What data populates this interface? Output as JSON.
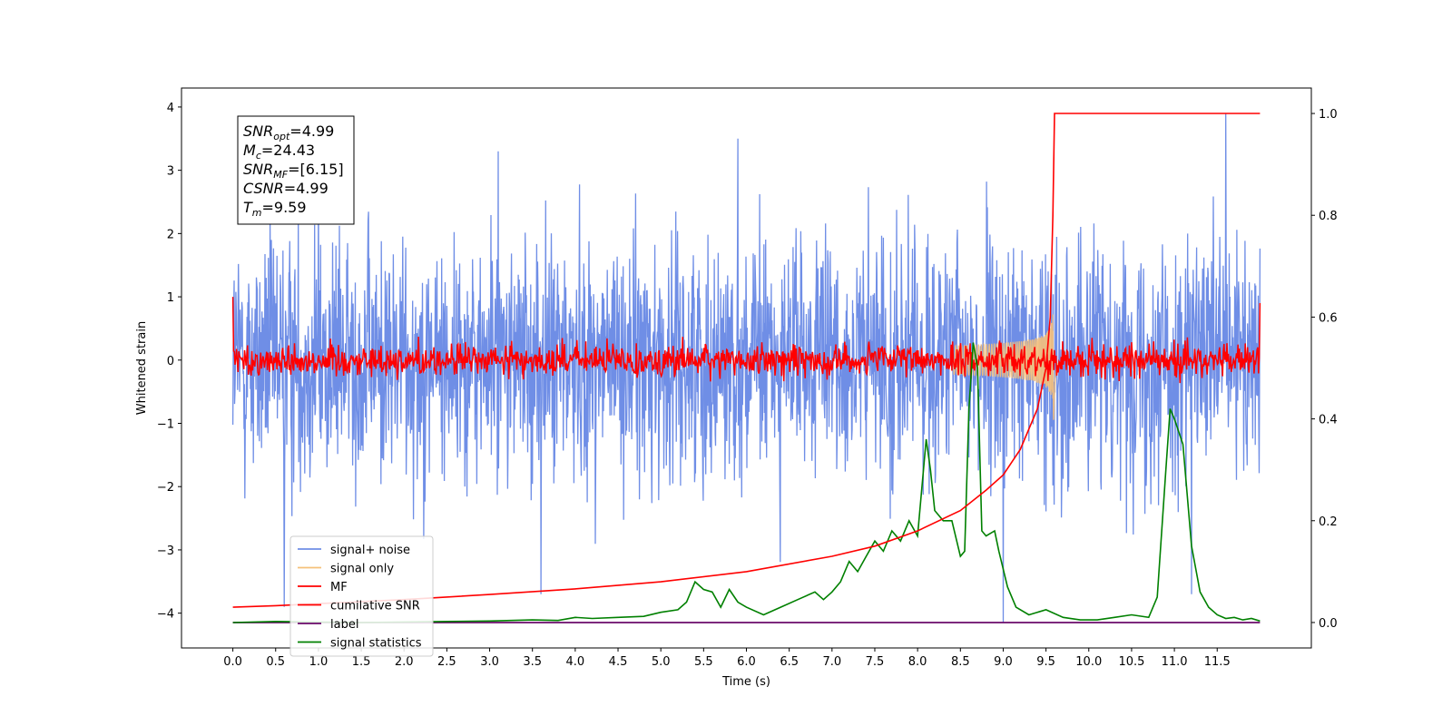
{
  "chart_data": {
    "type": "line",
    "title": "",
    "xlabel": "Time (s)",
    "ylabel": "Whitened strain",
    "xlim": [
      -0.6,
      12.6
    ],
    "ylim": [
      -4.55,
      4.3
    ],
    "y2lim": [
      -0.05,
      1.05
    ],
    "x_ticks": [
      0.0,
      0.5,
      1.0,
      1.5,
      2.0,
      2.5,
      3.0,
      3.5,
      4.0,
      4.5,
      5.0,
      5.5,
      6.0,
      6.5,
      7.0,
      7.5,
      8.0,
      8.5,
      9.0,
      9.5,
      10.0,
      10.5,
      11.0,
      11.5
    ],
    "x_tick_labels": [
      "0.0",
      "0.5",
      "1.0",
      "1.5",
      "2.0",
      "2.5",
      "3.0",
      "3.5",
      "4.0",
      "4.5",
      "5.0",
      "5.5",
      "6.0",
      "6.5",
      "7.0",
      "7.5",
      "8.0",
      "8.5",
      "9.0",
      "9.5",
      "10.0",
      "10.5",
      "11.0",
      "11.5"
    ],
    "y_ticks": [
      -4,
      -3,
      -2,
      -1,
      0,
      1,
      2,
      3,
      4
    ],
    "y_tick_labels": [
      "−4",
      "−3",
      "−2",
      "−1",
      "0",
      "1",
      "2",
      "3",
      "4"
    ],
    "y2_ticks": [
      0.0,
      0.2,
      0.4,
      0.6,
      0.8,
      1.0
    ],
    "y2_tick_labels": [
      "0.0",
      "0.2",
      "0.4",
      "0.6",
      "0.8",
      "1.0"
    ],
    "grid": false,
    "legend_position": "lower-left",
    "legend": [
      {
        "label": "signal+ noise",
        "color": "#6f8ee6"
      },
      {
        "label": "signal only",
        "color": "#f5c07a"
      },
      {
        "label": "MF",
        "color": "#ff0000"
      },
      {
        "label": "cumilative SNR",
        "color": "#ff0000"
      },
      {
        "label": "label",
        "color": "#6a0a6a"
      },
      {
        "label": "signal statistics",
        "color": "#008000"
      }
    ],
    "info_box": [
      {
        "main": "SNR",
        "sub": "opt",
        "rest": "=4.99"
      },
      {
        "main": "M",
        "sub": "c",
        "rest": "=24.43"
      },
      {
        "main": "SNR",
        "sub": "MF",
        "rest": "=[6.15]"
      },
      {
        "main": "CSNR",
        "sub": "",
        "rest": "=4.99"
      },
      {
        "main": "T",
        "sub": "m",
        "rest": "=9.59"
      }
    ],
    "series": [
      {
        "name": "signal+ noise",
        "axis": "left",
        "color": "#6f8ee6",
        "description_sampled": true,
        "x_range": [
          0.0,
          12.0
        ],
        "approx_std": 0.95,
        "peaks": [
          [
            1.0,
            2.7
          ],
          [
            3.1,
            3.3
          ],
          [
            5.9,
            3.5
          ],
          [
            11.6,
            3.9
          ],
          [
            0.6,
            -3.9
          ],
          [
            3.6,
            -3.7
          ],
          [
            9.0,
            -4.15
          ],
          [
            11.2,
            -3.7
          ]
        ]
      },
      {
        "name": "signal only",
        "axis": "left",
        "color": "#f5c07a",
        "chirp": {
          "t_merge": 9.59,
          "t_start": 8.4,
          "peak_amplitude": 0.95
        }
      },
      {
        "name": "MF",
        "axis": "left",
        "color": "#ff0000",
        "x_range": [
          0.0,
          12.0
        ],
        "approx_std": 0.13,
        "edges": [
          [
            0.0,
            1.0
          ],
          [
            12.0,
            0.9
          ]
        ]
      },
      {
        "name": "cumilative SNR",
        "axis": "right",
        "color": "#ff0000",
        "x": [
          0.0,
          0.5,
          1.0,
          2.0,
          3.0,
          4.0,
          5.0,
          6.0,
          7.0,
          7.5,
          8.0,
          8.5,
          8.8,
          9.0,
          9.2,
          9.4,
          9.5,
          9.55,
          9.58,
          9.6,
          12.0
        ],
        "values": [
          0.03,
          0.033,
          0.037,
          0.045,
          0.055,
          0.066,
          0.08,
          0.1,
          0.13,
          0.15,
          0.18,
          0.22,
          0.26,
          0.29,
          0.34,
          0.42,
          0.5,
          0.6,
          0.8,
          1.0,
          1.0
        ]
      },
      {
        "name": "label",
        "axis": "right",
        "color": "#6a0a6a",
        "x": [
          0.0,
          12.0
        ],
        "values": [
          0.0,
          0.0
        ]
      },
      {
        "name": "signal statistics",
        "axis": "right",
        "color": "#008000",
        "x": [
          0.0,
          0.5,
          1.0,
          1.5,
          2.0,
          2.5,
          3.0,
          3.5,
          3.8,
          4.0,
          4.2,
          4.5,
          4.8,
          5.0,
          5.2,
          5.3,
          5.4,
          5.5,
          5.6,
          5.7,
          5.8,
          5.9,
          6.0,
          6.2,
          6.4,
          6.6,
          6.8,
          6.9,
          7.0,
          7.1,
          7.2,
          7.3,
          7.4,
          7.5,
          7.6,
          7.7,
          7.8,
          7.9,
          8.0,
          8.1,
          8.15,
          8.2,
          8.3,
          8.4,
          8.5,
          8.55,
          8.6,
          8.65,
          8.7,
          8.75,
          8.8,
          8.9,
          8.95,
          9.05,
          9.15,
          9.3,
          9.5,
          9.7,
          9.9,
          10.1,
          10.3,
          10.5,
          10.7,
          10.8,
          10.9,
          10.95,
          11.0,
          11.1,
          11.2,
          11.3,
          11.4,
          11.5,
          11.6,
          11.7,
          11.8,
          11.9,
          12.0
        ],
        "values": [
          0.0,
          0.002,
          0.001,
          0.0,
          0.001,
          0.002,
          0.003,
          0.005,
          0.004,
          0.01,
          0.008,
          0.01,
          0.012,
          0.02,
          0.025,
          0.04,
          0.08,
          0.065,
          0.06,
          0.03,
          0.065,
          0.04,
          0.03,
          0.015,
          0.03,
          0.045,
          0.06,
          0.045,
          0.06,
          0.08,
          0.12,
          0.1,
          0.13,
          0.16,
          0.14,
          0.18,
          0.16,
          0.2,
          0.17,
          0.36,
          0.3,
          0.22,
          0.2,
          0.2,
          0.13,
          0.14,
          0.42,
          0.55,
          0.5,
          0.18,
          0.17,
          0.18,
          0.14,
          0.07,
          0.03,
          0.015,
          0.025,
          0.01,
          0.005,
          0.005,
          0.01,
          0.015,
          0.01,
          0.05,
          0.3,
          0.42,
          0.4,
          0.35,
          0.15,
          0.06,
          0.03,
          0.015,
          0.008,
          0.01,
          0.005,
          0.008,
          0.003
        ]
      }
    ]
  }
}
